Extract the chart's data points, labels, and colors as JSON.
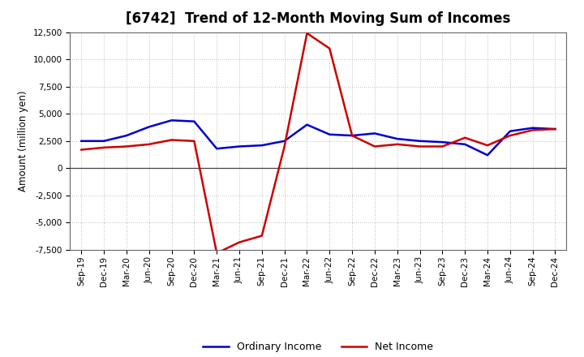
{
  "title": "[6742]  Trend of 12-Month Moving Sum of Incomes",
  "ylabel": "Amount (million yen)",
  "background_color": "#ffffff",
  "grid_color": "#aaaaaa",
  "x_labels": [
    "Sep-19",
    "Dec-19",
    "Mar-20",
    "Jun-20",
    "Sep-20",
    "Dec-20",
    "Mar-21",
    "Jun-21",
    "Sep-21",
    "Dec-21",
    "Mar-22",
    "Jun-22",
    "Sep-22",
    "Dec-22",
    "Mar-23",
    "Jun-23",
    "Sep-23",
    "Dec-23",
    "Mar-24",
    "Jun-24",
    "Sep-24",
    "Dec-24"
  ],
  "ordinary_income": [
    2500,
    2500,
    3000,
    3800,
    4400,
    4300,
    1800,
    2000,
    2100,
    2500,
    4000,
    3100,
    3000,
    3200,
    2700,
    2500,
    2400,
    2200,
    1200,
    3400,
    3700,
    3600
  ],
  "net_income": [
    1700,
    1900,
    2000,
    2200,
    2600,
    2500,
    -7800,
    -6800,
    -6200,
    2000,
    12400,
    11000,
    3000,
    2000,
    2200,
    2000,
    2000,
    2800,
    2100,
    3000,
    3500,
    3600
  ],
  "ordinary_color": "#0000cc",
  "net_color": "#cc0000",
  "ylim": [
    -7500,
    12500
  ],
  "yticks": [
    -7500,
    -5000,
    -2500,
    0,
    2500,
    5000,
    7500,
    10000,
    12500
  ],
  "line_width": 1.8,
  "title_fontsize": 12,
  "legend_fontsize": 9,
  "tick_fontsize": 7.5
}
